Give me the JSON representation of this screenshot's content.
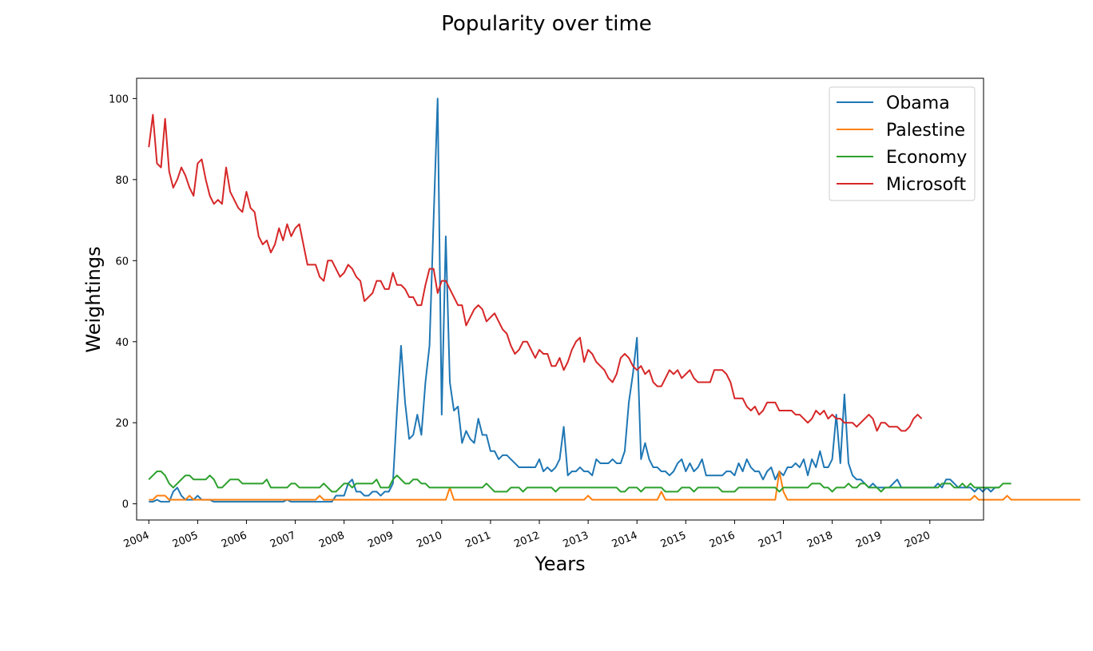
{
  "chart_data": {
    "type": "line",
    "title": "Popularity over time",
    "xlabel": "Years",
    "ylabel": "Weightings",
    "xlim": [
      2003.75,
      2021.1
    ],
    "ylim": [
      -4,
      105
    ],
    "x_ticks": [
      "2004",
      "2005",
      "2006",
      "2007",
      "2008",
      "2009",
      "2010",
      "2011",
      "2012",
      "2013",
      "2014",
      "2015",
      "2016",
      "2017",
      "2018",
      "2019",
      "2020"
    ],
    "y_ticks": [
      0,
      20,
      40,
      60,
      80,
      100
    ],
    "x_start": "2004-01",
    "x_end": "2019-11",
    "legend_position": "upper right",
    "grid": false,
    "series": [
      {
        "name": "Obama",
        "color": "#1f77b4",
        "values": [
          0.5,
          0.5,
          1,
          0.5,
          0.5,
          0.5,
          3,
          4,
          2,
          1,
          1,
          1,
          2,
          1,
          1,
          1,
          0.5,
          0.5,
          0.5,
          0.5,
          0.5,
          0.5,
          0.5,
          0.5,
          0.5,
          0.5,
          0.5,
          0.5,
          0.5,
          0.5,
          0.5,
          0.5,
          0.5,
          0.5,
          1,
          0.5,
          0.5,
          0.5,
          0.5,
          0.5,
          0.5,
          0.5,
          0.5,
          0.5,
          0.5,
          0.5,
          2,
          2,
          2,
          5,
          6,
          3,
          3,
          2,
          2,
          3,
          3,
          2,
          3,
          3,
          5,
          23,
          39,
          25,
          16,
          17,
          22,
          17,
          30,
          39,
          70,
          100,
          22,
          66,
          30,
          23,
          24,
          15,
          18,
          16,
          15,
          21,
          17,
          17,
          13,
          13,
          11,
          12,
          12,
          11,
          10,
          9,
          9,
          9,
          9,
          9,
          11,
          8,
          9,
          8,
          9,
          11,
          19,
          7,
          8,
          8,
          9,
          8,
          8,
          7,
          11,
          10,
          10,
          10,
          11,
          10,
          10,
          13,
          25,
          32,
          41,
          11,
          15,
          11,
          9,
          9,
          8,
          8,
          7,
          8,
          10,
          11,
          8,
          10,
          8,
          9,
          11,
          7,
          7,
          7,
          7,
          7,
          8,
          8,
          7,
          10,
          8,
          11,
          9,
          8,
          8,
          6,
          8,
          9,
          6,
          8,
          7,
          9,
          9,
          10,
          9,
          11,
          7,
          11,
          9,
          13,
          9,
          9,
          11,
          22,
          10,
          27,
          10,
          7,
          6,
          6,
          5,
          4,
          5,
          4,
          4,
          4,
          4,
          5,
          6,
          4,
          4,
          4,
          4,
          4,
          4,
          4,
          4,
          4,
          5,
          4,
          6,
          6,
          5,
          4,
          4,
          4,
          4,
          3,
          4,
          3,
          4,
          3,
          4,
          4
        ]
      },
      {
        "name": "Palestine",
        "color": "#ff7f0e",
        "values": [
          1,
          1,
          2,
          2,
          2,
          1,
          1,
          1,
          1,
          1,
          2,
          1,
          1,
          1,
          1,
          1,
          1,
          1,
          1,
          1,
          1,
          1,
          1,
          1,
          1,
          1,
          1,
          1,
          1,
          1,
          1,
          1,
          1,
          1,
          1,
          1,
          1,
          1,
          1,
          1,
          1,
          1,
          2,
          1,
          1,
          1,
          1,
          1,
          1,
          1,
          1,
          1,
          1,
          1,
          1,
          1,
          1,
          1,
          1,
          1,
          1,
          1,
          1,
          1,
          1,
          1,
          1,
          1,
          1,
          1,
          1,
          1,
          1,
          1,
          4,
          1,
          1,
          1,
          1,
          1,
          1,
          1,
          1,
          1,
          1,
          1,
          1,
          1,
          1,
          1,
          1,
          1,
          1,
          1,
          1,
          1,
          1,
          1,
          1,
          1,
          1,
          1,
          1,
          1,
          1,
          1,
          1,
          1,
          2,
          1,
          1,
          1,
          1,
          1,
          1,
          1,
          1,
          1,
          1,
          1,
          1,
          1,
          1,
          1,
          1,
          1,
          3,
          1,
          1,
          1,
          1,
          1,
          1,
          1,
          1,
          1,
          1,
          1,
          1,
          1,
          1,
          1,
          1,
          1,
          1,
          1,
          1,
          1,
          1,
          1,
          1,
          1,
          1,
          1,
          1,
          8,
          3,
          1,
          1,
          1,
          1,
          1,
          1,
          1,
          1,
          1,
          1,
          1,
          1,
          1,
          1,
          1,
          1,
          1,
          1,
          1,
          1,
          1,
          1,
          1,
          1,
          1,
          1,
          1,
          1,
          1,
          1,
          1,
          1,
          1,
          1,
          1,
          1,
          1,
          1,
          1,
          1,
          1,
          1,
          1,
          1,
          1,
          1,
          2,
          1,
          1,
          1,
          1,
          1,
          1,
          1,
          2,
          1,
          1,
          1,
          1,
          1,
          1,
          1,
          1,
          1,
          1,
          1,
          1,
          1,
          1,
          1,
          1,
          1,
          1
        ]
      },
      {
        "name": "Economy",
        "color": "#2ca02c",
        "values": [
          6,
          7,
          8,
          8,
          7,
          5,
          4,
          5,
          6,
          7,
          7,
          6,
          6,
          6,
          6,
          7,
          6,
          4,
          4,
          5,
          6,
          6,
          6,
          5,
          5,
          5,
          5,
          5,
          5,
          6,
          4,
          4,
          4,
          4,
          4,
          5,
          5,
          4,
          4,
          4,
          4,
          4,
          4,
          5,
          4,
          3,
          3,
          4,
          5,
          5,
          4,
          5,
          5,
          5,
          5,
          5,
          6,
          4,
          4,
          4,
          6,
          7,
          6,
          5,
          5,
          6,
          6,
          5,
          5,
          4,
          4,
          4,
          4,
          4,
          4,
          4,
          4,
          4,
          4,
          4,
          4,
          4,
          4,
          5,
          4,
          3,
          3,
          3,
          3,
          4,
          4,
          4,
          3,
          4,
          4,
          4,
          4,
          4,
          4,
          4,
          3,
          4,
          4,
          4,
          4,
          4,
          4,
          4,
          4,
          4,
          4,
          4,
          4,
          4,
          4,
          4,
          3,
          3,
          4,
          4,
          4,
          3,
          4,
          4,
          4,
          4,
          4,
          3,
          3,
          3,
          3,
          4,
          4,
          4,
          3,
          4,
          4,
          4,
          4,
          4,
          4,
          3,
          3,
          3,
          3,
          4,
          4,
          4,
          4,
          4,
          4,
          4,
          4,
          4,
          4,
          3,
          4,
          4,
          4,
          4,
          4,
          4,
          4,
          5,
          5,
          5,
          4,
          4,
          3,
          4,
          4,
          4,
          5,
          4,
          4,
          5,
          5,
          4,
          4,
          4,
          3,
          4,
          4,
          4,
          4,
          4,
          4,
          4,
          4,
          4,
          4,
          4,
          4,
          4,
          4,
          5,
          5,
          5,
          4,
          4,
          5,
          4,
          5,
          4,
          4,
          4,
          4,
          4,
          4,
          4,
          5,
          5,
          5
        ]
      },
      {
        "name": "Microsoft",
        "color": "#d62728",
        "values": [
          88,
          96,
          84,
          83,
          95,
          82,
          78,
          80,
          83,
          81,
          78,
          76,
          84,
          85,
          80,
          76,
          74,
          75,
          74,
          83,
          77,
          75,
          73,
          72,
          77,
          73,
          72,
          66,
          64,
          65,
          62,
          64,
          68,
          65,
          69,
          66,
          68,
          69,
          64,
          59,
          59,
          59,
          56,
          55,
          60,
          60,
          58,
          56,
          57,
          59,
          58,
          56,
          55,
          50,
          51,
          52,
          55,
          55,
          53,
          53,
          57,
          54,
          54,
          53,
          51,
          51,
          49,
          49,
          54,
          58,
          58,
          52,
          55,
          55,
          53,
          51,
          49,
          49,
          44,
          46,
          48,
          49,
          48,
          45,
          46,
          47,
          45,
          43,
          42,
          39,
          37,
          38,
          40,
          40,
          38,
          36,
          38,
          37,
          37,
          34,
          34,
          36,
          33,
          35,
          38,
          40,
          41,
          35,
          38,
          37,
          35,
          34,
          33,
          31,
          30,
          32,
          36,
          37,
          36,
          34,
          33,
          34,
          32,
          33,
          30,
          29,
          29,
          31,
          33,
          32,
          33,
          31,
          32,
          33,
          31,
          30,
          30,
          30,
          30,
          33,
          33,
          33,
          32,
          30,
          26,
          26,
          26,
          24,
          23,
          24,
          22,
          23,
          25,
          25,
          25,
          23,
          23,
          23,
          23,
          22,
          22,
          21,
          20,
          21,
          23,
          22,
          23,
          21,
          22,
          21,
          21,
          20,
          20,
          20,
          19,
          20,
          21,
          22,
          21,
          18,
          20,
          20,
          19,
          19,
          19,
          18,
          18,
          19,
          21,
          22,
          21
        ]
      }
    ]
  }
}
